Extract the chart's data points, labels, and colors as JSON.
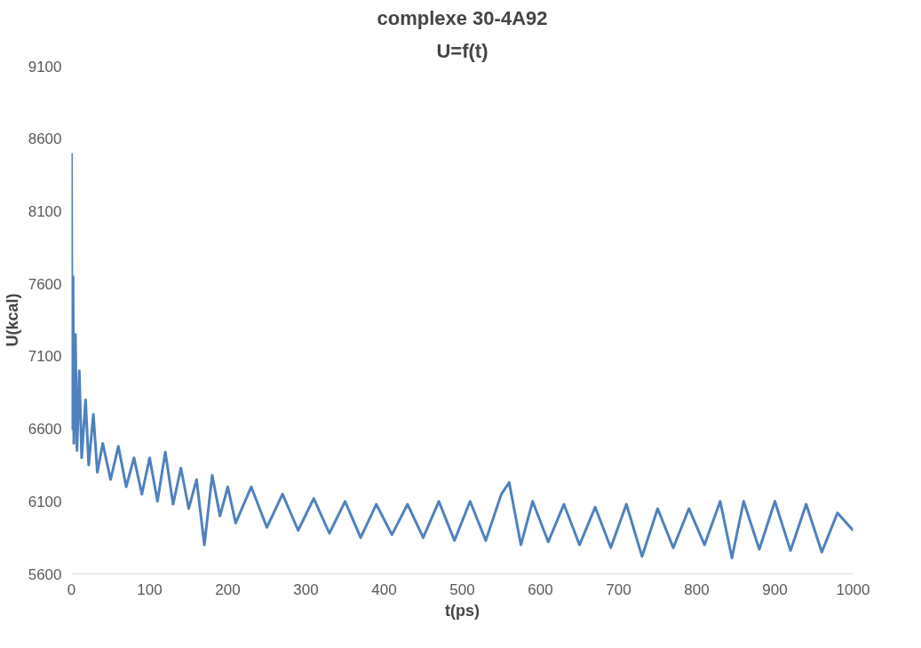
{
  "chart_data": {
    "type": "line",
    "title": "complexe 30-4A92",
    "subtitle": "U=f(t)",
    "xlabel": "t(ps)",
    "ylabel": "U(kcal)",
    "x": [
      0,
      1,
      2,
      3,
      5,
      7,
      10,
      13,
      18,
      22,
      28,
      33,
      40,
      50,
      60,
      70,
      80,
      90,
      100,
      110,
      120,
      130,
      140,
      150,
      160,
      170,
      180,
      190,
      200,
      210,
      230,
      250,
      270,
      290,
      310,
      330,
      350,
      370,
      390,
      410,
      430,
      450,
      470,
      490,
      510,
      530,
      550,
      560,
      575,
      590,
      610,
      630,
      650,
      670,
      690,
      710,
      730,
      750,
      770,
      790,
      810,
      830,
      845,
      860,
      880,
      900,
      920,
      940,
      960,
      980,
      1000
    ],
    "series": [
      {
        "color": "#4f81bd",
        "values": [
          8500,
          6600,
          7650,
          6500,
          7250,
          6450,
          7000,
          6400,
          6800,
          6350,
          6700,
          6300,
          6500,
          6250,
          6480,
          6200,
          6400,
          6150,
          6400,
          6100,
          6440,
          6080,
          6330,
          6050,
          6250,
          5800,
          6280,
          6000,
          6200,
          5950,
          6200,
          5920,
          6150,
          5900,
          6120,
          5880,
          6100,
          5850,
          6080,
          5870,
          6080,
          5850,
          6100,
          5830,
          6100,
          5830,
          6150,
          6230,
          5800,
          6100,
          5820,
          6080,
          5800,
          6060,
          5780,
          6080,
          5720,
          6050,
          5780,
          6050,
          5800,
          6100,
          5710,
          6100,
          5770,
          6100,
          5760,
          6080,
          5750,
          6020,
          5900
        ]
      }
    ],
    "xlim": [
      0,
      1000
    ],
    "xticks": [
      0,
      100,
      200,
      300,
      400,
      500,
      600,
      700,
      800,
      900,
      1000
    ],
    "ylim": [
      5600,
      9100
    ],
    "yticks": [
      5600,
      6100,
      6600,
      7100,
      7600,
      8100,
      8600,
      9100
    ],
    "grid": false,
    "marker": "none",
    "line_style": "solid"
  }
}
